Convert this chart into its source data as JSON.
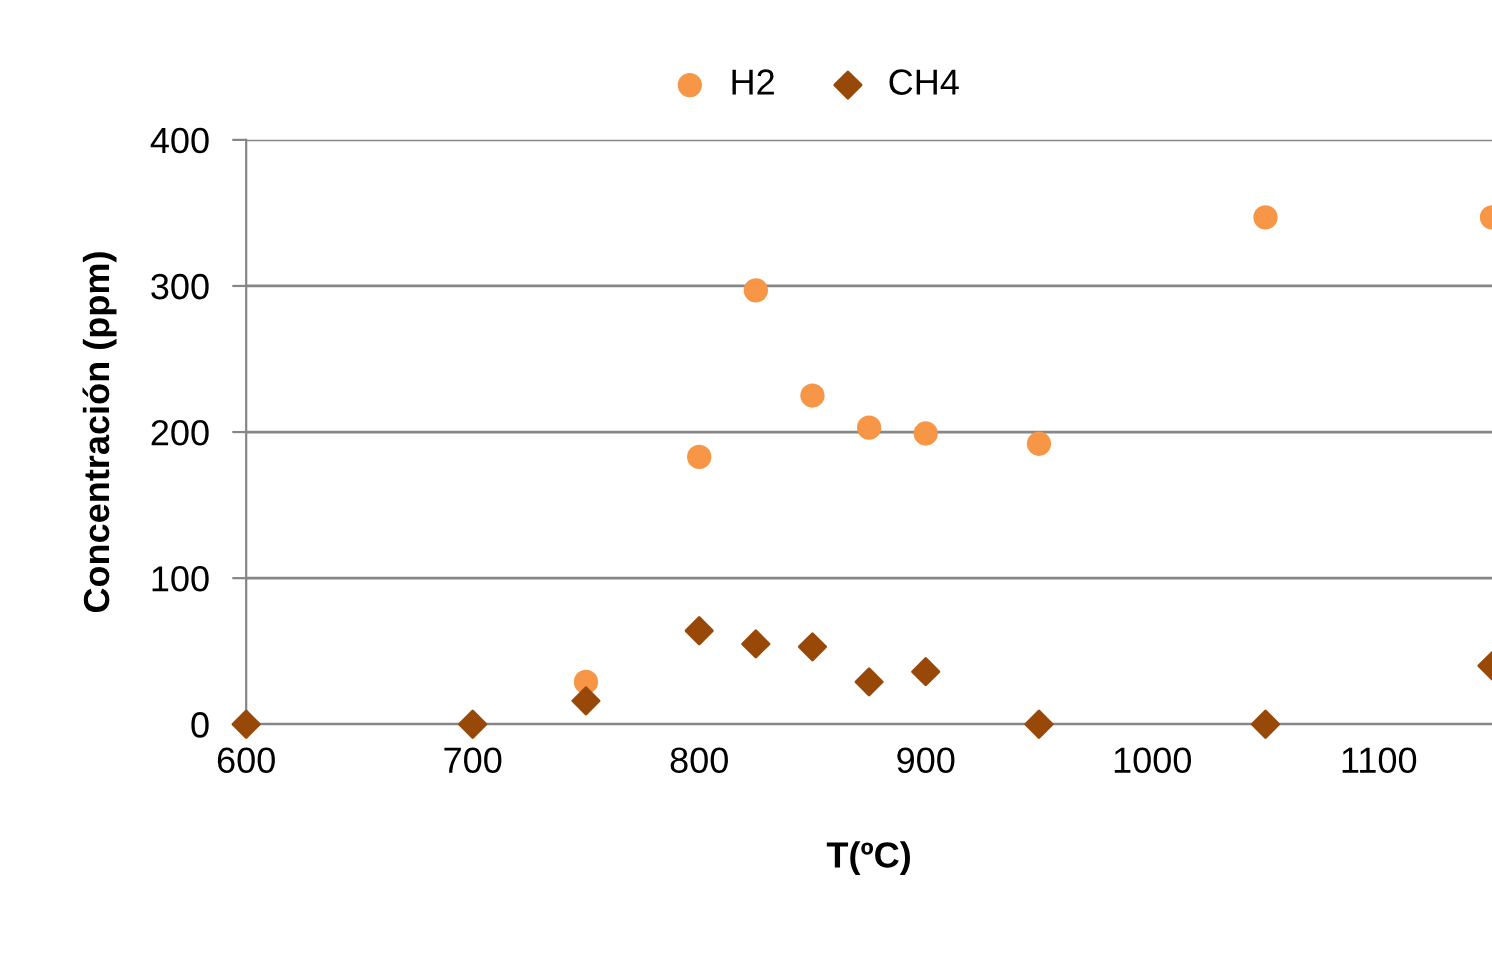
{
  "chart_data": {
    "type": "scatter",
    "xlabel": "T(ºC)",
    "ylabel": "Concentración (ppm)",
    "xlim": [
      600,
      1150
    ],
    "xticks": [
      600,
      700,
      800,
      900,
      1000,
      1100
    ],
    "ylim": [
      0,
      400
    ],
    "yticks": [
      0,
      100,
      200,
      300,
      400
    ],
    "grid": "y",
    "legend": "top",
    "series": [
      {
        "name": "H2",
        "color": "#f79646",
        "marker": "circle",
        "x": [
          750,
          800,
          825,
          850,
          875,
          900,
          950,
          1050,
          1150
        ],
        "values": [
          29,
          183,
          297,
          225,
          203,
          199,
          192,
          347,
          347
        ]
      },
      {
        "name": "CH4",
        "color": "#984807",
        "marker": "diamond",
        "x": [
          600,
          700,
          750,
          800,
          825,
          850,
          875,
          900,
          950,
          1050,
          1150
        ],
        "values": [
          0,
          0,
          16,
          64,
          55,
          53,
          29,
          36,
          0,
          0,
          40
        ]
      }
    ]
  }
}
